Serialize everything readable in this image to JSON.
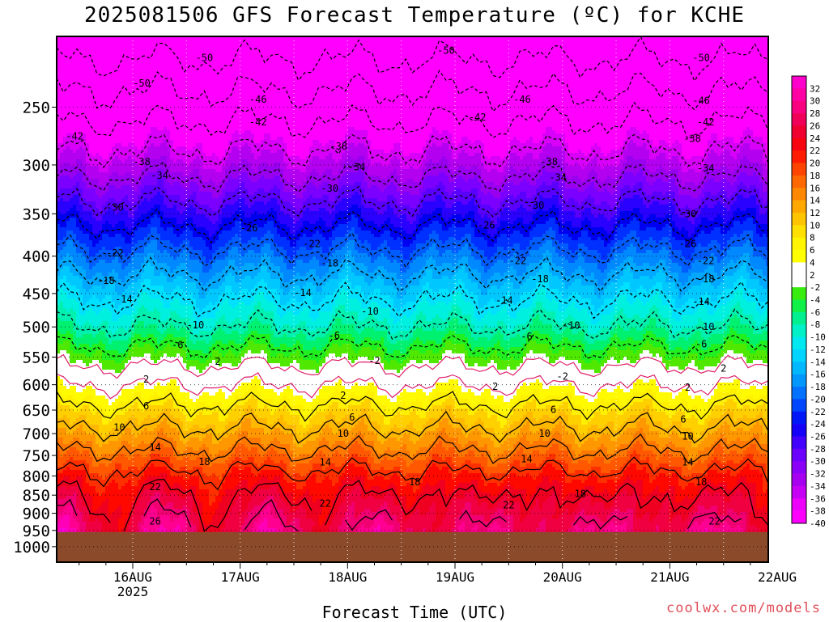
{
  "chart_data": {
    "type": "heatmap",
    "title": "2025081506 GFS Forecast Temperature (ºC) for KCHE",
    "xlabel": "Forecast Time (UTC)",
    "ylabel": "",
    "credit": "coolwx.com/models",
    "x_range_hours": [
      -17,
      142
    ],
    "x_ticks": [
      {
        "hour": 0,
        "label": "16AUG",
        "sublabel": "2025"
      },
      {
        "hour": 24,
        "label": "17AUG",
        "sublabel": ""
      },
      {
        "hour": 48,
        "label": "18AUG",
        "sublabel": ""
      },
      {
        "hour": 72,
        "label": "19AUG",
        "sublabel": ""
      },
      {
        "hour": 96,
        "label": "20AUG",
        "sublabel": ""
      },
      {
        "hour": 120,
        "label": "21AUG",
        "sublabel": ""
      },
      {
        "hour": 144,
        "label": "22AUG",
        "sublabel": ""
      }
    ],
    "y_axis": {
      "scale": "log",
      "inverted": true,
      "range_hpa": [
        1050,
        200
      ],
      "ticks": [
        250,
        300,
        350,
        400,
        450,
        500,
        550,
        600,
        650,
        700,
        750,
        800,
        850,
        900,
        950,
        1000
      ]
    },
    "surface_pressure_hpa": 955,
    "colorbar": {
      "labels": [
        32,
        30,
        28,
        26,
        24,
        22,
        20,
        18,
        16,
        14,
        12,
        10,
        8,
        6,
        4,
        2,
        -2,
        -4,
        -6,
        -8,
        -10,
        -12,
        -14,
        -16,
        -18,
        -20,
        -22,
        -24,
        -26,
        -28,
        -30,
        -32,
        -34,
        -36,
        -38,
        -40
      ]
    },
    "profile_pressures_hpa": [
      250,
      300,
      350,
      400,
      450,
      500,
      550,
      600,
      650,
      700,
      750,
      800,
      850,
      900,
      950
    ],
    "mean_profile_c": [
      -44,
      -36,
      -28,
      -21,
      -15,
      -10,
      -4,
      2,
      7,
      11,
      15,
      19,
      22,
      24,
      26
    ],
    "contour_labels": [
      {
        "value": "-50",
        "hour": 16,
        "p": 214
      },
      {
        "value": "-50",
        "hour": 70,
        "p": 209
      },
      {
        "value": "-50",
        "hour": 127,
        "p": 214
      },
      {
        "value": "-50",
        "hour": 2,
        "p": 232
      },
      {
        "value": "-46",
        "hour": 28,
        "p": 244
      },
      {
        "value": "-46",
        "hour": 87,
        "p": 244
      },
      {
        "value": "-46",
        "hour": 127,
        "p": 245
      },
      {
        "value": "-42",
        "hour": -13,
        "p": 274
      },
      {
        "value": "-42",
        "hour": 28,
        "p": 262
      },
      {
        "value": "-42",
        "hour": 77,
        "p": 258
      },
      {
        "value": "-42",
        "hour": 128,
        "p": 262
      },
      {
        "value": "-38",
        "hour": 2,
        "p": 297
      },
      {
        "value": "-38",
        "hour": 46,
        "p": 283
      },
      {
        "value": "-38",
        "hour": 93,
        "p": 297
      },
      {
        "value": "-38",
        "hour": 125,
        "p": 276
      },
      {
        "value": "-34",
        "hour": 6,
        "p": 310
      },
      {
        "value": "-34",
        "hour": 50,
        "p": 302
      },
      {
        "value": "-34",
        "hour": 95,
        "p": 312
      },
      {
        "value": "-34",
        "hour": 128,
        "p": 303
      },
      {
        "value": "-30",
        "hour": -4,
        "p": 343
      },
      {
        "value": "-30",
        "hour": 44,
        "p": 323
      },
      {
        "value": "-30",
        "hour": 90,
        "p": 341
      },
      {
        "value": "-30",
        "hour": 124,
        "p": 350
      },
      {
        "value": "-26",
        "hour": 26,
        "p": 366
      },
      {
        "value": "-26",
        "hour": 79,
        "p": 363
      },
      {
        "value": "-26",
        "hour": 124,
        "p": 385
      },
      {
        "value": "-22",
        "hour": -4,
        "p": 396
      },
      {
        "value": "-22",
        "hour": 40,
        "p": 385
      },
      {
        "value": "-22",
        "hour": 86,
        "p": 406
      },
      {
        "value": "-22",
        "hour": 128,
        "p": 406
      },
      {
        "value": "-18",
        "hour": -6,
        "p": 432
      },
      {
        "value": "-18",
        "hour": 44,
        "p": 409
      },
      {
        "value": "-18",
        "hour": 91,
        "p": 430
      },
      {
        "value": "-18",
        "hour": 128,
        "p": 430
      },
      {
        "value": "-14",
        "hour": -2,
        "p": 458
      },
      {
        "value": "-14",
        "hour": 38,
        "p": 449
      },
      {
        "value": "-14",
        "hour": 83,
        "p": 460
      },
      {
        "value": "-14",
        "hour": 127,
        "p": 462
      },
      {
        "value": "-10",
        "hour": 14,
        "p": 497
      },
      {
        "value": "-10",
        "hour": 53,
        "p": 476
      },
      {
        "value": "-10",
        "hour": 98,
        "p": 498
      },
      {
        "value": "-10",
        "hour": 128,
        "p": 500
      },
      {
        "value": "-6",
        "hour": 10,
        "p": 529
      },
      {
        "value": "-6",
        "hour": 45,
        "p": 514
      },
      {
        "value": "-6",
        "hour": 88,
        "p": 515
      },
      {
        "value": "-6",
        "hour": 127,
        "p": 528
      },
      {
        "value": "-2",
        "hour": 54,
        "p": 556
      },
      {
        "value": "-2",
        "hour": 96,
        "p": 585
      },
      {
        "value": "2",
        "hour": 19,
        "p": 558
      },
      {
        "value": "2",
        "hour": 3,
        "p": 590
      },
      {
        "value": "2",
        "hour": 47,
        "p": 621
      },
      {
        "value": "2",
        "hour": 81,
        "p": 604
      },
      {
        "value": "2",
        "hour": 132,
        "p": 570
      },
      {
        "value": "2",
        "hour": 124,
        "p": 605
      },
      {
        "value": "6",
        "hour": 3,
        "p": 642
      },
      {
        "value": "6",
        "hour": 49,
        "p": 665
      },
      {
        "value": "6",
        "hour": 94,
        "p": 649
      },
      {
        "value": "6",
        "hour": 123,
        "p": 669
      },
      {
        "value": "10",
        "hour": -3,
        "p": 687
      },
      {
        "value": "10",
        "hour": 47,
        "p": 700
      },
      {
        "value": "10",
        "hour": 92,
        "p": 700
      },
      {
        "value": "10",
        "hour": 124,
        "p": 706
      },
      {
        "value": "14",
        "hour": 5,
        "p": 731
      },
      {
        "value": "14",
        "hour": 43,
        "p": 766
      },
      {
        "value": "14",
        "hour": 88,
        "p": 758
      },
      {
        "value": "14",
        "hour": 124,
        "p": 766
      },
      {
        "value": "18",
        "hour": 16,
        "p": 765
      },
      {
        "value": "18",
        "hour": 63,
        "p": 816
      },
      {
        "value": "18",
        "hour": 100,
        "p": 846
      },
      {
        "value": "18",
        "hour": 127,
        "p": 816
      },
      {
        "value": "22",
        "hour": 5,
        "p": 828
      },
      {
        "value": "22",
        "hour": 43,
        "p": 873
      },
      {
        "value": "22",
        "hour": 84,
        "p": 877
      },
      {
        "value": "22",
        "hour": 130,
        "p": 923
      },
      {
        "value": "26",
        "hour": 5,
        "p": 923
      }
    ]
  },
  "colors": {
    "ground": "#8b4a2a",
    "freezing_line": "#e0206a",
    "credit": "#e0505a"
  }
}
